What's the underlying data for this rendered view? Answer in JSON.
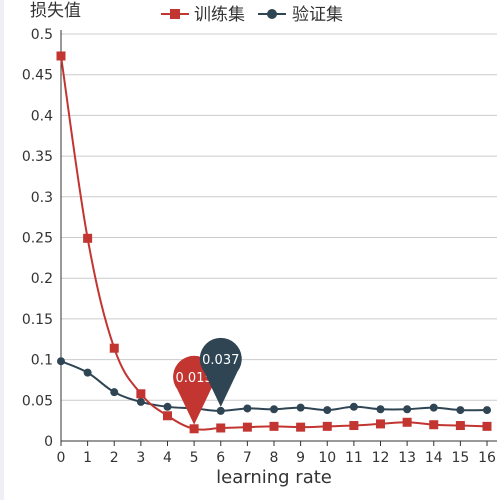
{
  "chart_data": {
    "type": "line",
    "ylabel": "损失值",
    "xlabel": "learning rate",
    "x": [
      0,
      1,
      2,
      3,
      4,
      5,
      6,
      7,
      8,
      9,
      10,
      11,
      12,
      13,
      14,
      15,
      16
    ],
    "xlim": [
      0,
      16
    ],
    "ylim": [
      0,
      0.5
    ],
    "yticks": [
      0,
      0.05,
      0.1,
      0.15,
      0.2,
      0.25,
      0.3,
      0.35,
      0.4,
      0.45,
      0.5
    ],
    "grid": true,
    "legend_position": "top-center",
    "series": [
      {
        "name": "训练集",
        "color": "#c23531",
        "marker": "square",
        "values": [
          0.473,
          0.249,
          0.114,
          0.058,
          0.031,
          0.015,
          0.016,
          0.017,
          0.018,
          0.017,
          0.018,
          0.019,
          0.021,
          0.023,
          0.02,
          0.019,
          0.018
        ]
      },
      {
        "name": "验证集",
        "color": "#2f4554",
        "marker": "circle",
        "values": [
          0.098,
          0.084,
          0.06,
          0.048,
          0.042,
          0.04,
          0.037,
          0.04,
          0.039,
          0.041,
          0.038,
          0.042,
          0.039,
          0.039,
          0.041,
          0.038,
          0.038
        ]
      }
    ],
    "mark_points": [
      {
        "series": "训练集",
        "x": 5,
        "label": "0.015"
      },
      {
        "series": "验证集",
        "x": 6,
        "label": "0.037"
      }
    ]
  }
}
